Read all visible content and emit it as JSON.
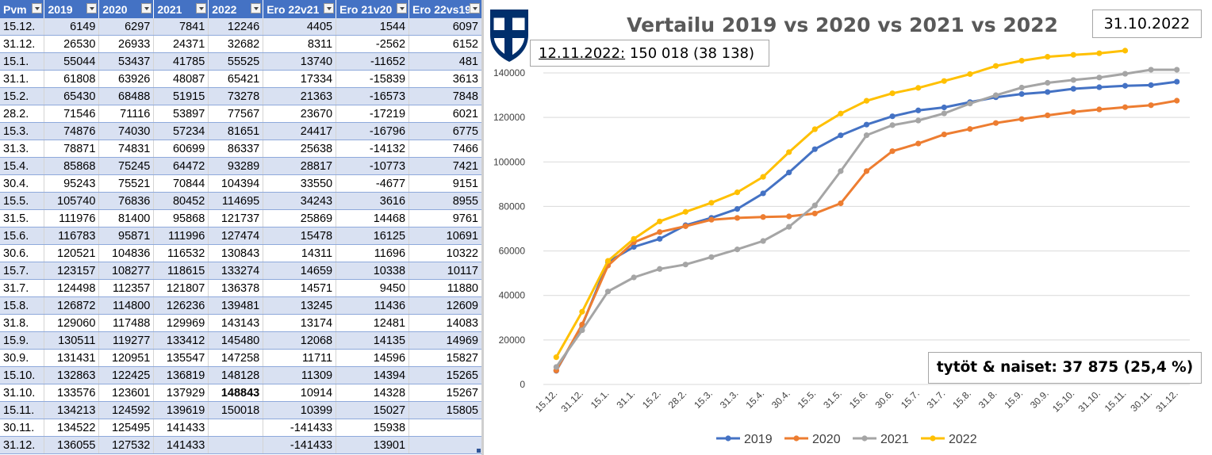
{
  "table": {
    "headers": [
      "Pvm",
      "2019",
      "2020",
      "2021",
      "2022",
      "Ero 22v21",
      "Ero 21v20",
      "Ero 22vs19"
    ],
    "rows": [
      [
        "15.12.",
        "6149",
        "6297",
        "7841",
        "12246",
        "4405",
        "1544",
        "6097"
      ],
      [
        "31.12.",
        "26530",
        "26933",
        "24371",
        "32682",
        "8311",
        "-2562",
        "6152"
      ],
      [
        "15.1.",
        "55044",
        "53437",
        "41785",
        "55525",
        "13740",
        "-11652",
        "481"
      ],
      [
        "31.1.",
        "61808",
        "63926",
        "48087",
        "65421",
        "17334",
        "-15839",
        "3613"
      ],
      [
        "15.2.",
        "65430",
        "68488",
        "51915",
        "73278",
        "21363",
        "-16573",
        "7848"
      ],
      [
        "28.2.",
        "71546",
        "71116",
        "53897",
        "77567",
        "23670",
        "-17219",
        "6021"
      ],
      [
        "15.3.",
        "74876",
        "74030",
        "57234",
        "81651",
        "24417",
        "-16796",
        "6775"
      ],
      [
        "31.3.",
        "78871",
        "74831",
        "60699",
        "86337",
        "25638",
        "-14132",
        "7466"
      ],
      [
        "15.4.",
        "85868",
        "75245",
        "64472",
        "93289",
        "28817",
        "-10773",
        "7421"
      ],
      [
        "30.4.",
        "95243",
        "75521",
        "70844",
        "104394",
        "33550",
        "-4677",
        "9151"
      ],
      [
        "15.5.",
        "105740",
        "76836",
        "80452",
        "114695",
        "34243",
        "3616",
        "8955"
      ],
      [
        "31.5.",
        "111976",
        "81400",
        "95868",
        "121737",
        "25869",
        "14468",
        "9761"
      ],
      [
        "15.6.",
        "116783",
        "95871",
        "111996",
        "127474",
        "15478",
        "16125",
        "10691"
      ],
      [
        "30.6.",
        "120521",
        "104836",
        "116532",
        "130843",
        "14311",
        "11696",
        "10322"
      ],
      [
        "15.7.",
        "123157",
        "108277",
        "118615",
        "133274",
        "14659",
        "10338",
        "10117"
      ],
      [
        "31.7.",
        "124498",
        "112357",
        "121807",
        "136378",
        "14571",
        "9450",
        "11880"
      ],
      [
        "15.8.",
        "126872",
        "114800",
        "126236",
        "139481",
        "13245",
        "11436",
        "12609"
      ],
      [
        "31.8.",
        "129060",
        "117488",
        "129969",
        "143143",
        "13174",
        "12481",
        "14083"
      ],
      [
        "15.9.",
        "130511",
        "119277",
        "133412",
        "145480",
        "12068",
        "14135",
        "14969"
      ],
      [
        "30.9.",
        "131431",
        "120951",
        "135547",
        "147258",
        "11711",
        "14596",
        "15827"
      ],
      [
        "15.10.",
        "132863",
        "122425",
        "136819",
        "148128",
        "11309",
        "14394",
        "15265"
      ],
      [
        "31.10.",
        "133576",
        "123601",
        "137929",
        "148843",
        "10914",
        "14328",
        "15267"
      ],
      [
        "15.11.",
        "134213",
        "124592",
        "139619",
        "150018",
        "10399",
        "15027",
        "15805"
      ],
      [
        "30.11.",
        "134522",
        "125495",
        "141433",
        "",
        "-141433",
        "15938",
        ""
      ],
      [
        "31.12.",
        "136055",
        "127532",
        "141433",
        "",
        "-141433",
        "13901",
        ""
      ]
    ]
  },
  "chart_data": {
    "type": "line",
    "title": "Vertailu 2019 vs 2020 vs 2021 vs 2022",
    "x": [
      "15.12.",
      "31.12.",
      "15.1.",
      "31.1.",
      "15.2.",
      "28.2.",
      "15.3.",
      "31.3.",
      "15.4.",
      "30.4.",
      "15.5.",
      "31.5.",
      "15.6.",
      "30.6.",
      "15.7.",
      "31.7.",
      "15.8.",
      "31.8.",
      "15.9.",
      "30.9.",
      "15.10.",
      "31.10.",
      "15.11.",
      "30.11.",
      "31.12."
    ],
    "ylim": [
      0,
      140000
    ],
    "yticks": [
      0,
      20000,
      40000,
      60000,
      80000,
      100000,
      120000,
      140000
    ],
    "grid": true,
    "legend_position": "bottom",
    "series": [
      {
        "name": "2019",
        "color": "#4472c4",
        "values": [
          6149,
          26530,
          55044,
          61808,
          65430,
          71546,
          74876,
          78871,
          85868,
          95243,
          105740,
          111976,
          116783,
          120521,
          123157,
          124498,
          126872,
          129060,
          130511,
          131431,
          132863,
          133576,
          134213,
          134522,
          136055
        ]
      },
      {
        "name": "2020",
        "color": "#ed7d31",
        "values": [
          6297,
          26933,
          53437,
          63926,
          68488,
          71116,
          74030,
          74831,
          75245,
          75521,
          76836,
          81400,
          95871,
          104836,
          108277,
          112357,
          114800,
          117488,
          119277,
          120951,
          122425,
          123601,
          124592,
          125495,
          127532
        ]
      },
      {
        "name": "2021",
        "color": "#a5a5a5",
        "values": [
          7841,
          24371,
          41785,
          48087,
          51915,
          53897,
          57234,
          60699,
          64472,
          70844,
          80452,
          95868,
          111996,
          116532,
          118615,
          121807,
          126236,
          129969,
          133412,
          135547,
          136819,
          137929,
          139619,
          141433,
          141433
        ]
      },
      {
        "name": "2022",
        "color": "#ffc000",
        "values": [
          12246,
          32682,
          55525,
          65421,
          73278,
          77567,
          81651,
          86337,
          93289,
          104394,
          114695,
          121737,
          127474,
          130843,
          133274,
          136378,
          139481,
          143143,
          145480,
          147258,
          148128,
          148843,
          150018,
          null,
          null
        ]
      }
    ]
  },
  "annotations": {
    "current_date": "31.10.2022",
    "count_date": "12.11.2022:",
    "count_value": " 150 018 (38 138)",
    "women_text": "tytöt & naiset: 37 875 (25,4 %)"
  },
  "logo": {
    "label": "SUOMEN PALLOLIITTO",
    "icon": "finnish-football-association-shield-icon",
    "colors": [
      "#002f6c",
      "#ffffff"
    ]
  }
}
